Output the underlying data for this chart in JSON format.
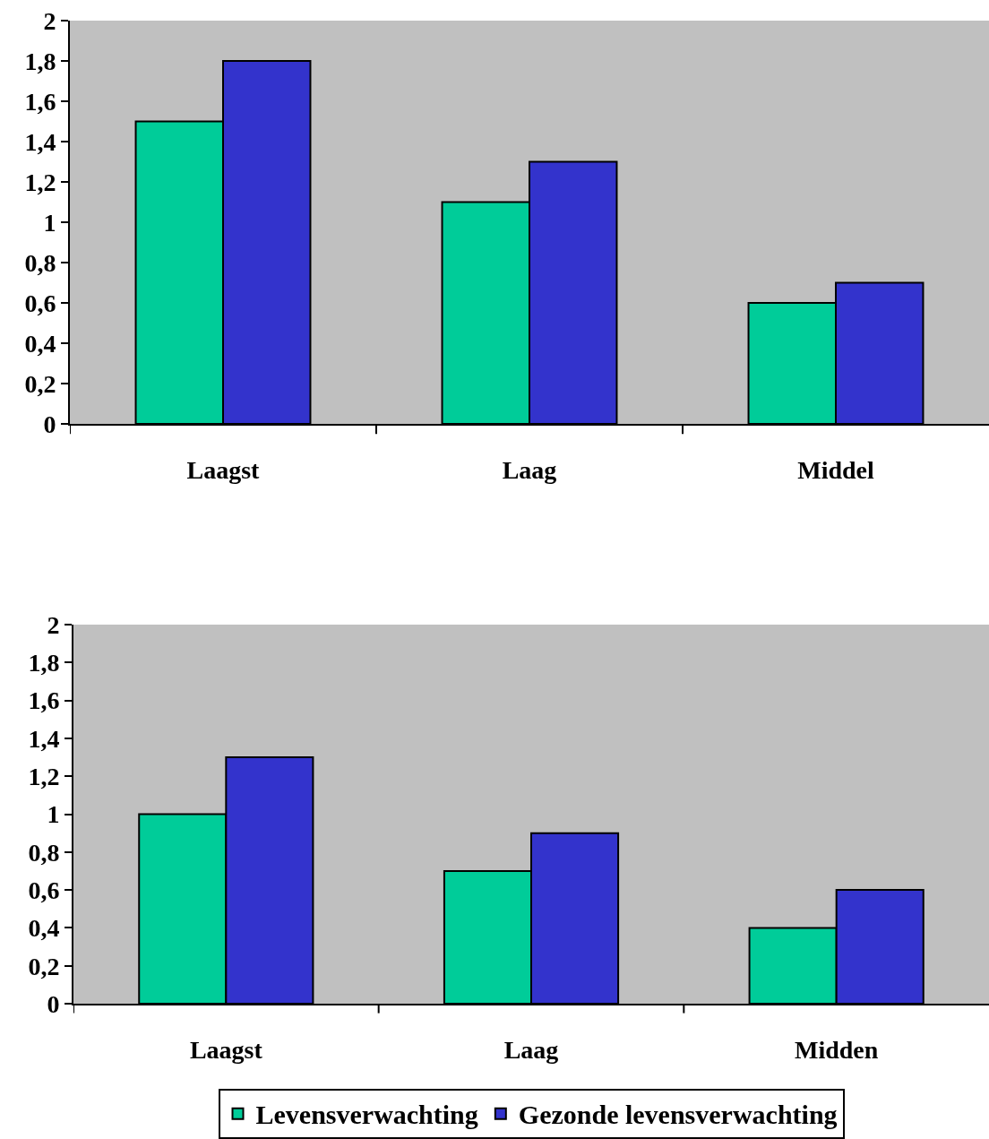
{
  "chart_data": [
    {
      "type": "bar",
      "categories": [
        "Laagst",
        "Laag",
        "Middel"
      ],
      "series": [
        {
          "color": "#00cc99",
          "values": [
            1.5,
            1.1,
            0.6
          ]
        },
        {
          "color": "#3333cc",
          "values": [
            1.8,
            1.3,
            0.7
          ]
        }
      ],
      "ylim": [
        0,
        2
      ],
      "yticks": [
        0,
        {
          "value": 0.2,
          "label": "0,2"
        },
        {
          "value": 0.4,
          "label": "0,4"
        },
        {
          "value": 0.6,
          "label": "0,6"
        },
        {
          "value": 0.8,
          "label": "0,8"
        },
        1,
        {
          "value": 1.2,
          "label": "1,2"
        },
        {
          "value": 1.4,
          "label": "1,4"
        },
        {
          "value": 1.6,
          "label": "1,6"
        },
        {
          "value": 1.8,
          "label": "1,8"
        },
        2
      ],
      "grid": false,
      "legend": false
    },
    {
      "type": "bar",
      "categories": [
        "Laagst",
        "Laag",
        "Midden"
      ],
      "series": [
        {
          "name": "Levensverwachting",
          "color": "#00cc99",
          "values": [
            1.0,
            0.7,
            0.4
          ]
        },
        {
          "name": "Gezonde levensverwachting",
          "color": "#3333cc",
          "values": [
            1.3,
            0.9,
            0.6
          ]
        }
      ],
      "ylim": [
        0,
        2
      ],
      "yticks": [
        0,
        {
          "value": 0.2,
          "label": "0,2"
        },
        {
          "value": 0.4,
          "label": "0,4"
        },
        {
          "value": 0.6,
          "label": "0,6"
        },
        {
          "value": 0.8,
          "label": "0,8"
        },
        1,
        {
          "value": 1.2,
          "label": "1,2"
        },
        {
          "value": 1.4,
          "label": "1,4"
        },
        {
          "value": 1.6,
          "label": "1,6"
        },
        {
          "value": 1.8,
          "label": "1,8"
        },
        2
      ],
      "grid": false,
      "legend": "bottom"
    }
  ]
}
